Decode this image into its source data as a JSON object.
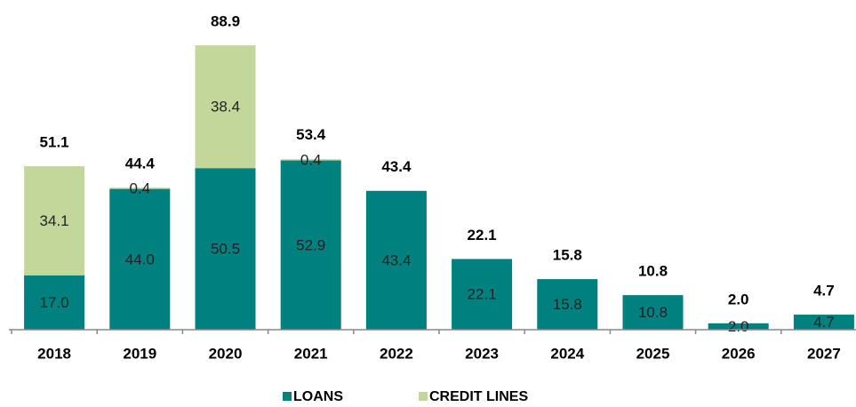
{
  "chart_data": {
    "type": "stacked_bar",
    "categories": [
      "2018",
      "2019",
      "2020",
      "2021",
      "2022",
      "2023",
      "2024",
      "2025",
      "2026",
      "2027"
    ],
    "series": [
      {
        "name": "LOANS",
        "color": "#00807f",
        "values": [
          17.0,
          44.0,
          50.5,
          52.9,
          43.4,
          22.1,
          15.8,
          10.8,
          2.0,
          4.7
        ],
        "value_labels": [
          "17.0",
          "44.0",
          "50.5",
          "52.9",
          "43.4",
          "22.1",
          "15.8",
          "10.8",
          "2.0",
          "4.7"
        ]
      },
      {
        "name": "CREDIT LINES",
        "color": "#c4d79b",
        "values": [
          34.1,
          0.4,
          38.4,
          0.4,
          0,
          0,
          0,
          0,
          0,
          0
        ],
        "value_labels": [
          "34.1",
          "0.4",
          "38.4",
          "0.4",
          null,
          null,
          null,
          null,
          null,
          null
        ]
      }
    ],
    "totals": [
      51.1,
      44.4,
      88.9,
      53.4,
      43.4,
      22.1,
      15.8,
      10.8,
      2.0,
      4.7
    ],
    "total_labels": [
      "51.1",
      "44.4",
      "88.9",
      "53.4",
      "43.4",
      "22.1",
      "15.8",
      "10.8",
      "2.0",
      "4.7"
    ],
    "ylim": [
      0,
      100
    ]
  }
}
